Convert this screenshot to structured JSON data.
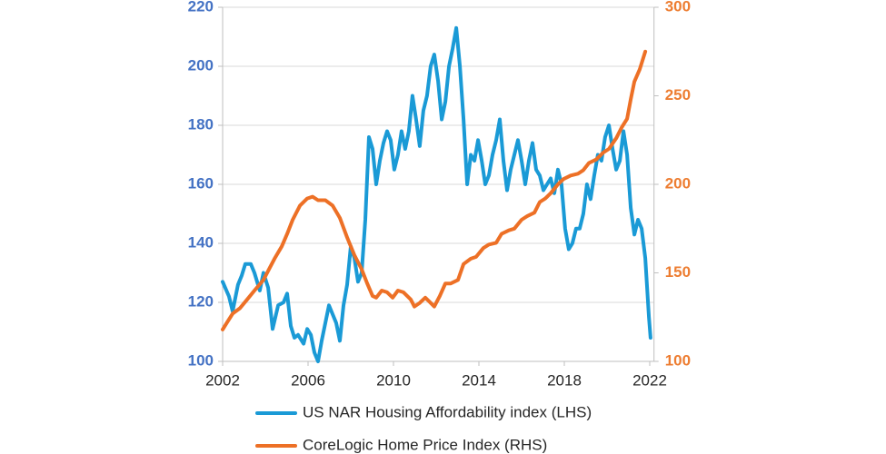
{
  "chart_data": {
    "type": "line",
    "xlim": [
      2002,
      2022.2
    ],
    "xticks": [
      2002,
      2006,
      2010,
      2014,
      2018,
      2022
    ],
    "ylim": [
      100,
      220
    ],
    "yticks": [
      100,
      120,
      140,
      160,
      180,
      200,
      220
    ],
    "y2lim": [
      100,
      300
    ],
    "y2ticks": [
      100,
      150,
      200,
      250,
      300
    ],
    "grid": true,
    "legend": "bottom",
    "ytick_color": "#4472c4",
    "y2tick_color": "#ed7d31",
    "series": [
      {
        "name": "US NAR Housing Affordability index (LHS)",
        "color": "#1a9ad6",
        "axis": "y",
        "x": [
          2002.0,
          2002.3,
          2002.47,
          2002.72,
          2002.89,
          2003.06,
          2003.32,
          2003.49,
          2003.74,
          2003.91,
          2004.13,
          2004.34,
          2004.6,
          2004.85,
          2005.02,
          2005.19,
          2005.36,
          2005.53,
          2005.79,
          2005.96,
          2006.13,
          2006.3,
          2006.47,
          2006.64,
          2006.81,
          2006.98,
          2007.15,
          2007.32,
          2007.49,
          2007.66,
          2007.83,
          2008.0,
          2008.17,
          2008.34,
          2008.51,
          2008.68,
          2008.85,
          2009.02,
          2009.19,
          2009.36,
          2009.53,
          2009.7,
          2009.87,
          2010.04,
          2010.21,
          2010.38,
          2010.55,
          2010.72,
          2010.89,
          2011.06,
          2011.23,
          2011.4,
          2011.57,
          2011.74,
          2011.91,
          2012.09,
          2012.26,
          2012.43,
          2012.6,
          2012.77,
          2012.94,
          2013.11,
          2013.28,
          2013.45,
          2013.62,
          2013.79,
          2013.96,
          2014.13,
          2014.3,
          2014.47,
          2014.64,
          2014.81,
          2014.98,
          2015.15,
          2015.32,
          2015.49,
          2015.66,
          2015.83,
          2016.0,
          2016.17,
          2016.34,
          2016.51,
          2016.68,
          2016.85,
          2017.02,
          2017.19,
          2017.36,
          2017.53,
          2017.7,
          2017.87,
          2018.04,
          2018.21,
          2018.38,
          2018.55,
          2018.72,
          2018.89,
          2019.06,
          2019.23,
          2019.4,
          2019.57,
          2019.74,
          2019.91,
          2020.09,
          2020.26,
          2020.43,
          2020.6,
          2020.77,
          2020.94,
          2021.11,
          2021.28,
          2021.45,
          2021.62,
          2021.79,
          2021.96,
          2022.04
        ],
        "values": [
          127,
          122,
          117,
          126,
          129,
          133,
          133,
          130,
          124,
          130,
          125,
          111,
          119,
          120,
          123,
          112,
          108,
          109,
          106,
          111,
          109,
          103,
          100,
          107,
          113,
          119,
          116,
          113,
          107,
          119,
          126,
          139,
          135,
          127,
          130,
          148,
          176,
          172,
          160,
          168,
          174,
          178,
          175,
          165,
          170,
          178,
          172,
          178,
          190,
          182,
          173,
          185,
          190,
          200,
          204,
          195,
          182,
          188,
          200,
          206,
          213,
          200,
          182,
          160,
          170,
          168,
          175,
          168,
          160,
          163,
          170,
          175,
          182,
          168,
          158,
          165,
          170,
          175,
          168,
          160,
          168,
          174,
          165,
          163,
          158,
          160,
          162,
          157,
          165,
          160,
          145,
          138,
          140,
          145,
          145,
          150,
          160,
          155,
          163,
          170,
          168,
          176,
          180,
          172,
          165,
          168,
          178,
          170,
          152,
          143,
          148,
          145,
          135,
          115,
          108
        ]
      },
      {
        "name": "CoreLogic Home Price Index (RHS)",
        "color": "#ed7026",
        "axis": "y2",
        "x": [
          2002.0,
          2002.21,
          2002.47,
          2002.81,
          2003.15,
          2003.49,
          2003.91,
          2004.17,
          2004.43,
          2004.77,
          2005.02,
          2005.28,
          2005.62,
          2005.96,
          2006.21,
          2006.47,
          2006.81,
          2007.15,
          2007.49,
          2007.83,
          2008.17,
          2008.51,
          2008.77,
          2009.02,
          2009.19,
          2009.45,
          2009.7,
          2009.96,
          2010.21,
          2010.47,
          2010.81,
          2010.98,
          2011.23,
          2011.49,
          2011.66,
          2011.91,
          2012.17,
          2012.43,
          2012.68,
          2013.02,
          2013.28,
          2013.62,
          2013.87,
          2014.21,
          2014.47,
          2014.81,
          2015.06,
          2015.4,
          2015.66,
          2016.0,
          2016.26,
          2016.6,
          2016.85,
          2017.11,
          2017.36,
          2017.7,
          2017.96,
          2018.3,
          2018.64,
          2018.89,
          2019.15,
          2019.49,
          2019.83,
          2020.09,
          2020.43,
          2020.68,
          2020.94,
          2021.11,
          2021.28,
          2021.53,
          2021.79
        ],
        "values": [
          118,
          122,
          127,
          130,
          135,
          140,
          146,
          152,
          158,
          165,
          172,
          180,
          188,
          192,
          193,
          191,
          191,
          188,
          181,
          170,
          160,
          152,
          144,
          137,
          136,
          140,
          139,
          136,
          140,
          139,
          135,
          131,
          133,
          136,
          134,
          131,
          137,
          144,
          144,
          146,
          155,
          158,
          159,
          164,
          166,
          167,
          172,
          174,
          175,
          180,
          182,
          184,
          190,
          192,
          195,
          200,
          203,
          205,
          206,
          208,
          212,
          214,
          218,
          220,
          226,
          232,
          237,
          248,
          258,
          265,
          275
        ]
      }
    ]
  }
}
